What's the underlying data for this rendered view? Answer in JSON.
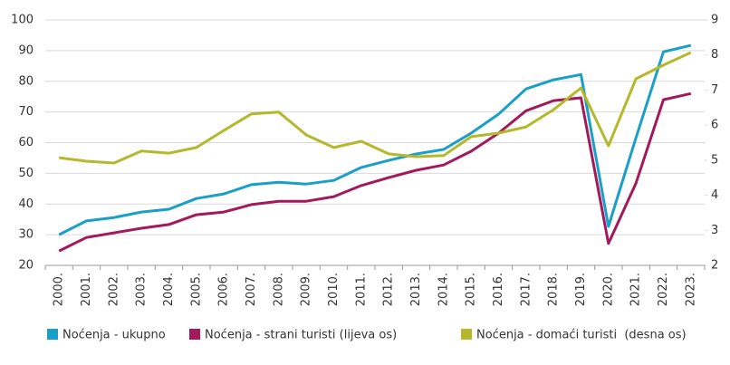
{
  "chart_data": {
    "type": "line",
    "categories": [
      "2000.",
      "2001.",
      "2002.",
      "2003.",
      "2004.",
      "2005.",
      "2006.",
      "2007.",
      "2008.",
      "2009.",
      "2010.",
      "2011.",
      "2012.",
      "2013.",
      "2014.",
      "2015.",
      "2016.",
      "2017.",
      "2018.",
      "2019.",
      "2020.",
      "2021.",
      "2022.",
      "2023."
    ],
    "series": [
      {
        "name": "Noćenja - ukupno",
        "color": "#1a9fc9",
        "values": [
          30.0,
          34.5,
          35.6,
          37.4,
          38.3,
          41.8,
          43.3,
          46.3,
          47.1,
          46.5,
          47.7,
          51.9,
          54.2,
          56.3,
          57.8,
          63.1,
          69.3,
          77.5,
          80.5,
          82.2,
          32.7,
          61.6,
          89.6,
          91.7
        ]
      },
      {
        "name": "Noćenja - strani turisti (lijeva os)",
        "color": "#a3195b",
        "values": [
          24.7,
          29.1,
          30.6,
          32.1,
          33.3,
          36.5,
          37.4,
          39.8,
          40.9,
          40.9,
          42.4,
          46.0,
          48.6,
          51.0,
          52.7,
          57.2,
          63.1,
          70.4,
          73.7,
          74.6,
          27.1,
          46.8,
          74.0,
          76.0
        ]
      },
      {
        "name": "Noćenja - domaći turisti  (desna os)",
        "color": "#b5b82a",
        "axis": "y2",
        "values": [
          5.07,
          4.97,
          4.92,
          5.26,
          5.2,
          5.36,
          5.85,
          6.32,
          6.37,
          5.72,
          5.36,
          5.54,
          5.18,
          5.1,
          5.13,
          5.67,
          5.77,
          5.95,
          6.44,
          7.06,
          5.41,
          7.32,
          7.71,
          8.07
        ]
      }
    ],
    "ylim": [
      20,
      100
    ],
    "yticks": [
      20,
      30,
      40,
      50,
      60,
      70,
      80,
      90,
      100
    ],
    "y2lim": [
      2,
      9
    ],
    "y2ticks": [
      2,
      3,
      4,
      5,
      6,
      7,
      8,
      9
    ],
    "grid": true,
    "legend": "bottom"
  }
}
